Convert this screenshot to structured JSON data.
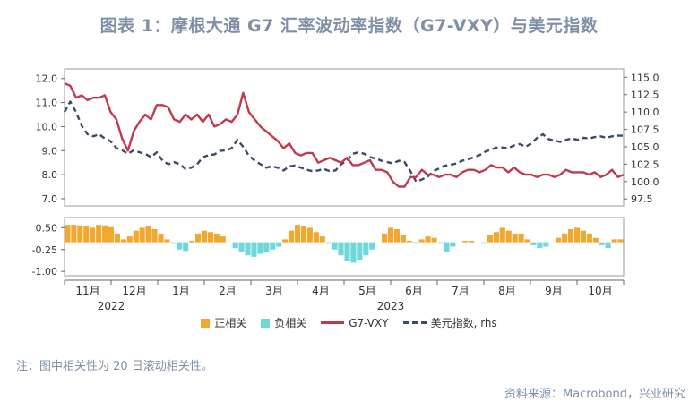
{
  "title": "图表 1：摩根大通 G7 汇率波动率指数（G7-VXY）与美元指数",
  "note": "注：图中相关性为 20 日滚动相关性。",
  "source": "资料来源：Macrobond，兴业研究",
  "legend": [
    {
      "label": "正相关",
      "kind": "pos"
    },
    {
      "label": "负相关",
      "kind": "neg"
    },
    {
      "label": "G7-VXY",
      "kind": "line"
    },
    {
      "label": "美元指数, rhs",
      "kind": "dash"
    }
  ],
  "colors": {
    "pos": "#f0a830",
    "neg": "#6fd8d8",
    "vxy": "#c0394d",
    "dxy": "#3c4a66",
    "text_muted": "#7f8fa6"
  },
  "chart_data": [
    {
      "type": "line",
      "x_axis": {
        "months": [
          "11月",
          "12月",
          "1月",
          "2月",
          "3月",
          "4月",
          "5月",
          "6月",
          "7月",
          "8月",
          "9月",
          "10月"
        ],
        "years": [
          "2022",
          "2023"
        ]
      },
      "left_axis": {
        "ticks": [
          "12.0",
          "11.0",
          "10.0",
          "9.0",
          "8.0",
          "7.0"
        ],
        "ylim": [
          6.7,
          12.4
        ]
      },
      "right_axis": {
        "ticks": [
          "115.0",
          "112.5",
          "110.0",
          "107.5",
          "105.0",
          "102.5",
          "100.0",
          "97.5"
        ],
        "ylim": [
          96.5,
          116.2
        ]
      },
      "series": [
        {
          "name": "G7-VXY",
          "axis": "left",
          "values": [
            11.8,
            11.7,
            11.2,
            11.3,
            11.1,
            11.2,
            11.2,
            11.3,
            10.6,
            10.3,
            9.5,
            9.0,
            9.8,
            10.2,
            10.5,
            10.3,
            10.9,
            10.9,
            10.8,
            10.3,
            10.2,
            10.5,
            10.3,
            10.5,
            10.2,
            10.5,
            10.0,
            10.1,
            10.3,
            10.2,
            10.5,
            11.4,
            10.6,
            10.3,
            10.0,
            9.8,
            9.6,
            9.4,
            9.1,
            9.3,
            8.9,
            8.8,
            8.9,
            8.9,
            8.5,
            8.6,
            8.7,
            8.6,
            8.5,
            8.7,
            8.4,
            8.4,
            8.5,
            8.6,
            8.2,
            8.2,
            8.1,
            7.7,
            7.5,
            7.5,
            7.9,
            7.9,
            8.2,
            8.0,
            8.0,
            7.9,
            8.0,
            8.0,
            7.9,
            8.1,
            8.2,
            8.2,
            8.1,
            8.2,
            8.4,
            8.3,
            8.3,
            8.1,
            8.3,
            8.1,
            8.0,
            8.0,
            7.9,
            8.0,
            8.0,
            7.9,
            8.0,
            8.2,
            8.1,
            8.1,
            8.1,
            8.0,
            8.1,
            7.9,
            8.0,
            8.2,
            7.9,
            8.0
          ]
        },
        {
          "name": "美元指数, rhs",
          "axis": "right",
          "values": [
            110.0,
            111.5,
            110.0,
            108.0,
            106.8,
            106.5,
            106.8,
            106.2,
            105.8,
            104.8,
            104.5,
            104.0,
            104.5,
            104.2,
            104.0,
            103.5,
            104.2,
            103.0,
            102.5,
            102.8,
            102.5,
            101.8,
            102.0,
            102.5,
            103.5,
            103.8,
            103.9,
            104.4,
            104.5,
            104.8,
            106.0,
            105.0,
            103.7,
            103.0,
            102.5,
            102.0,
            102.2,
            102.0,
            101.6,
            102.2,
            102.3,
            102.0,
            101.7,
            101.5,
            101.6,
            101.8,
            101.5,
            101.6,
            102.5,
            103.0,
            104.0,
            104.2,
            104.0,
            103.5,
            103.3,
            103.0,
            102.8,
            102.6,
            103.0,
            102.8,
            101.5,
            100.0,
            100.3,
            100.7,
            101.5,
            101.9,
            102.3,
            102.4,
            102.6,
            103.0,
            103.2,
            103.5,
            103.8,
            104.3,
            104.6,
            104.9,
            104.9,
            104.8,
            105.2,
            105.4,
            105.0,
            105.5,
            106.3,
            106.8,
            106.1,
            105.9,
            105.7,
            106.0,
            106.2,
            106.0,
            106.3,
            106.2,
            106.4,
            106.5,
            106.3,
            106.5,
            106.6,
            106.6
          ]
        }
      ]
    },
    {
      "type": "bar",
      "y_axis": {
        "ticks": [
          "0.50",
          "-0.25",
          "-1.00"
        ],
        "ylim": [
          -1.15,
          0.85
        ]
      },
      "series": [
        {
          "name": "20日滚动相关性",
          "values": [
            0.6,
            0.6,
            0.58,
            0.55,
            0.5,
            0.6,
            0.58,
            0.52,
            0.3,
            0.1,
            0.2,
            0.4,
            0.5,
            0.55,
            0.45,
            0.3,
            0.1,
            -0.05,
            -0.25,
            -0.3,
            0.05,
            0.3,
            0.4,
            0.35,
            0.3,
            0.2,
            0.0,
            -0.2,
            -0.35,
            -0.45,
            -0.5,
            -0.4,
            -0.35,
            -0.25,
            -0.15,
            0.1,
            0.4,
            0.6,
            0.55,
            0.5,
            0.35,
            0.2,
            -0.05,
            -0.25,
            -0.45,
            -0.65,
            -0.7,
            -0.6,
            -0.45,
            -0.25,
            0.0,
            0.3,
            0.5,
            0.45,
            0.25,
            0.05,
            -0.05,
            0.1,
            0.2,
            0.15,
            -0.05,
            -0.35,
            -0.15,
            0.0,
            0.05,
            0.05,
            0.0,
            -0.05,
            0.25,
            0.35,
            0.5,
            0.4,
            0.3,
            0.3,
            0.1,
            -0.1,
            -0.2,
            -0.15,
            0.0,
            0.15,
            0.3,
            0.45,
            0.5,
            0.4,
            0.3,
            0.15,
            -0.1,
            -0.2,
            0.1,
            0.1
          ]
        }
      ]
    }
  ]
}
